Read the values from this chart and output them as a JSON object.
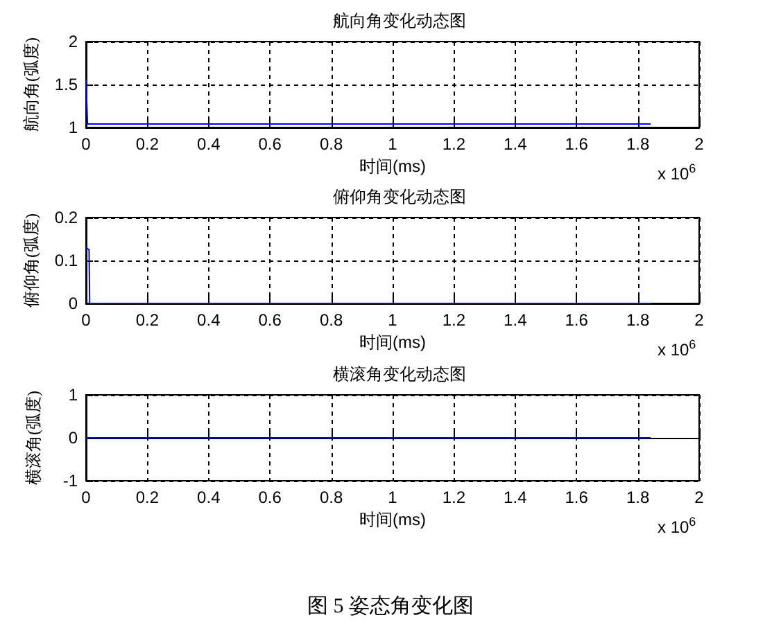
{
  "chart_data": [
    {
      "type": "line",
      "title": "航向角变化动态图",
      "xlabel": "时间(ms)",
      "ylabel": "航向角(弧度)",
      "x": [
        0,
        0.005,
        1.84
      ],
      "series": [
        {
          "color": "#0000ff",
          "values": [
            1.55,
            1.04,
            1.04
          ]
        }
      ],
      "xlim": [
        0,
        2
      ],
      "ylim": [
        1,
        2
      ],
      "xticks": [
        0,
        0.2,
        0.4,
        0.6,
        0.8,
        1,
        1.2,
        1.4,
        1.6,
        1.8,
        2
      ],
      "yticks": [
        1,
        1.5,
        2
      ],
      "grid": true,
      "marker": "none",
      "line_style": "solid",
      "annotations": [
        "x 10$^{6}$"
      ]
    },
    {
      "type": "line",
      "title": "俯仰角变化动态图",
      "xlabel": "时间(ms)",
      "ylabel": "俯仰角(弧度)",
      "x": [
        0,
        0.002,
        0.01,
        0.012,
        1.84
      ],
      "series": [
        {
          "color": "#0000ff",
          "values": [
            0.13,
            0.13,
            0.125,
            0,
            0
          ]
        }
      ],
      "xlim": [
        0,
        2
      ],
      "ylim": [
        0,
        0.2
      ],
      "xticks": [
        0,
        0.2,
        0.4,
        0.6,
        0.8,
        1,
        1.2,
        1.4,
        1.6,
        1.8,
        2
      ],
      "yticks": [
        0,
        0.1,
        0.2
      ],
      "grid": true,
      "marker": "none",
      "line_style": "solid",
      "annotations": [
        "x 10$^{6}$"
      ]
    },
    {
      "type": "line",
      "title": "横滚角变化动态图",
      "xlabel": "时间(ms)",
      "ylabel": "横滚角(弧度)",
      "x": [
        0,
        1.84
      ],
      "series": [
        {
          "color": "#0000ff",
          "values": [
            0,
            0
          ]
        }
      ],
      "xlim": [
        0,
        2
      ],
      "ylim": [
        -1,
        1
      ],
      "xticks": [
        0,
        0.2,
        0.4,
        0.6,
        0.8,
        1,
        1.2,
        1.4,
        1.6,
        1.8,
        2
      ],
      "yticks": [
        -1,
        0,
        1
      ],
      "grid": true,
      "marker": "none",
      "line_style": "solid",
      "annotations": [
        "x 10$^{6}$",
        "图 5  姿态角变化图"
      ]
    }
  ]
}
